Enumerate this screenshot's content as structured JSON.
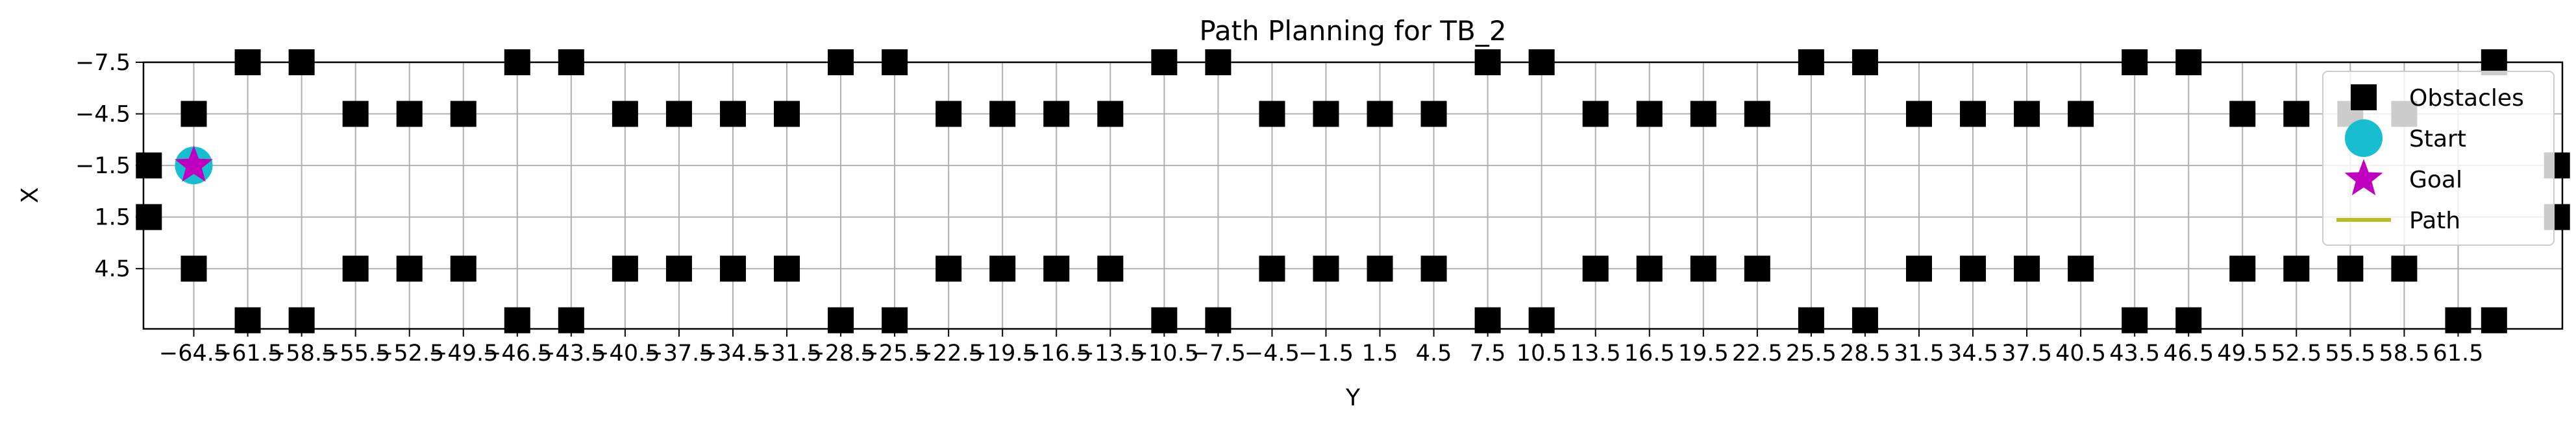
{
  "chart_data": {
    "type": "scatter",
    "title": "Path Planning for TB_2",
    "xlabel": "Y",
    "ylabel": "X",
    "xlim": [
      -67.3,
      67.3
    ],
    "ylim": [
      -7.5,
      8
    ],
    "y_inverted": true,
    "grid": true,
    "legend_position": "upper-right",
    "x_ticks": [
      -64.5,
      -61.5,
      -58.5,
      -55.5,
      -52.5,
      -49.5,
      -46.5,
      -43.5,
      -40.5,
      -37.5,
      -34.5,
      -31.5,
      -28.5,
      -25.5,
      -22.5,
      -19.5,
      -16.5,
      -13.5,
      -10.5,
      -7.5,
      -4.5,
      -1.5,
      1.5,
      4.5,
      7.5,
      10.5,
      13.5,
      16.5,
      19.5,
      22.5,
      25.5,
      28.5,
      31.5,
      34.5,
      37.5,
      40.5,
      43.5,
      46.5,
      49.5,
      52.5,
      55.5,
      58.5,
      61.5
    ],
    "x_tick_labels": [
      "−64.5",
      "−61.5",
      "−58.5",
      "−55.5",
      "−52.5",
      "−49.5",
      "−46.5",
      "−43.5",
      "−40.5",
      "−37.5",
      "−34.5",
      "−31.5",
      "−28.5",
      "−25.5",
      "−22.5",
      "−19.5",
      "−16.5",
      "−13.5",
      "−10.5",
      "−7.5",
      "−4.5",
      "−1.5",
      "1.5",
      "4.5",
      "7.5",
      "10.5",
      "13.5",
      "16.5",
      "19.5",
      "22.5",
      "25.5",
      "28.5",
      "31.5",
      "34.5",
      "37.5",
      "40.5",
      "43.5",
      "46.5",
      "49.5",
      "52.5",
      "55.5",
      "58.5",
      "61.5"
    ],
    "y_ticks": [
      -7.5,
      -4.5,
      -1.5,
      1.5,
      4.5
    ],
    "y_tick_labels": [
      "−7.5",
      "−4.5",
      "−1.5",
      "1.5",
      "4.5"
    ],
    "series": [
      {
        "name": "Obstacles",
        "marker": "square",
        "color": "#000000",
        "rows": [
          {
            "y": -7.5,
            "x": [
              -61.5,
              -58.5,
              -46.5,
              -43.5,
              -28.5,
              -25.5,
              -10.5,
              -7.5,
              7.5,
              10.5,
              25.5,
              28.5,
              43.5,
              46.5,
              63.5
            ]
          },
          {
            "y": -4.5,
            "x": [
              -64.5,
              -55.5,
              -52.5,
              -49.5,
              -40.5,
              -37.5,
              -34.5,
              -31.5,
              -22.5,
              -19.5,
              -16.5,
              -13.5,
              -4.5,
              -1.5,
              1.5,
              4.5,
              13.5,
              16.5,
              19.5,
              22.5,
              31.5,
              34.5,
              37.5,
              40.5,
              49.5,
              52.5,
              55.5,
              58.5
            ]
          },
          {
            "y": -1.5,
            "x": [
              -67.0,
              67.0
            ]
          },
          {
            "y": 1.5,
            "x": [
              -67.0,
              67.0
            ]
          },
          {
            "y": 4.5,
            "x": [
              -64.5,
              -55.5,
              -52.5,
              -49.5,
              -40.5,
              -37.5,
              -34.5,
              -31.5,
              -22.5,
              -19.5,
              -16.5,
              -13.5,
              -4.5,
              -1.5,
              1.5,
              4.5,
              13.5,
              16.5,
              19.5,
              22.5,
              31.5,
              34.5,
              37.5,
              40.5,
              49.5,
              52.5,
              55.5,
              58.5
            ]
          },
          {
            "y": 7.5,
            "x": [
              -61.5,
              -58.5,
              -46.5,
              -43.5,
              -28.5,
              -25.5,
              -10.5,
              -7.5,
              7.5,
              10.5,
              25.5,
              28.5,
              43.5,
              46.5,
              61.5,
              63.5
            ]
          }
        ]
      },
      {
        "name": "Start",
        "marker": "circle",
        "color": "#17becf",
        "points": [
          {
            "x": -64.5,
            "y": -1.5
          }
        ]
      },
      {
        "name": "Goal",
        "marker": "star",
        "color": "#bf00bf",
        "points": [
          {
            "x": -64.5,
            "y": -1.5
          }
        ]
      },
      {
        "name": "Path",
        "marker": "line",
        "color": "#bcbd22",
        "points": []
      }
    ],
    "legend": [
      {
        "label": "Obstacles",
        "marker": "square",
        "color": "#000000"
      },
      {
        "label": "Start",
        "marker": "circle",
        "color": "#17becf"
      },
      {
        "label": "Goal",
        "marker": "star",
        "color": "#bf00bf"
      },
      {
        "label": "Path",
        "marker": "line",
        "color": "#bcbd22"
      }
    ]
  }
}
